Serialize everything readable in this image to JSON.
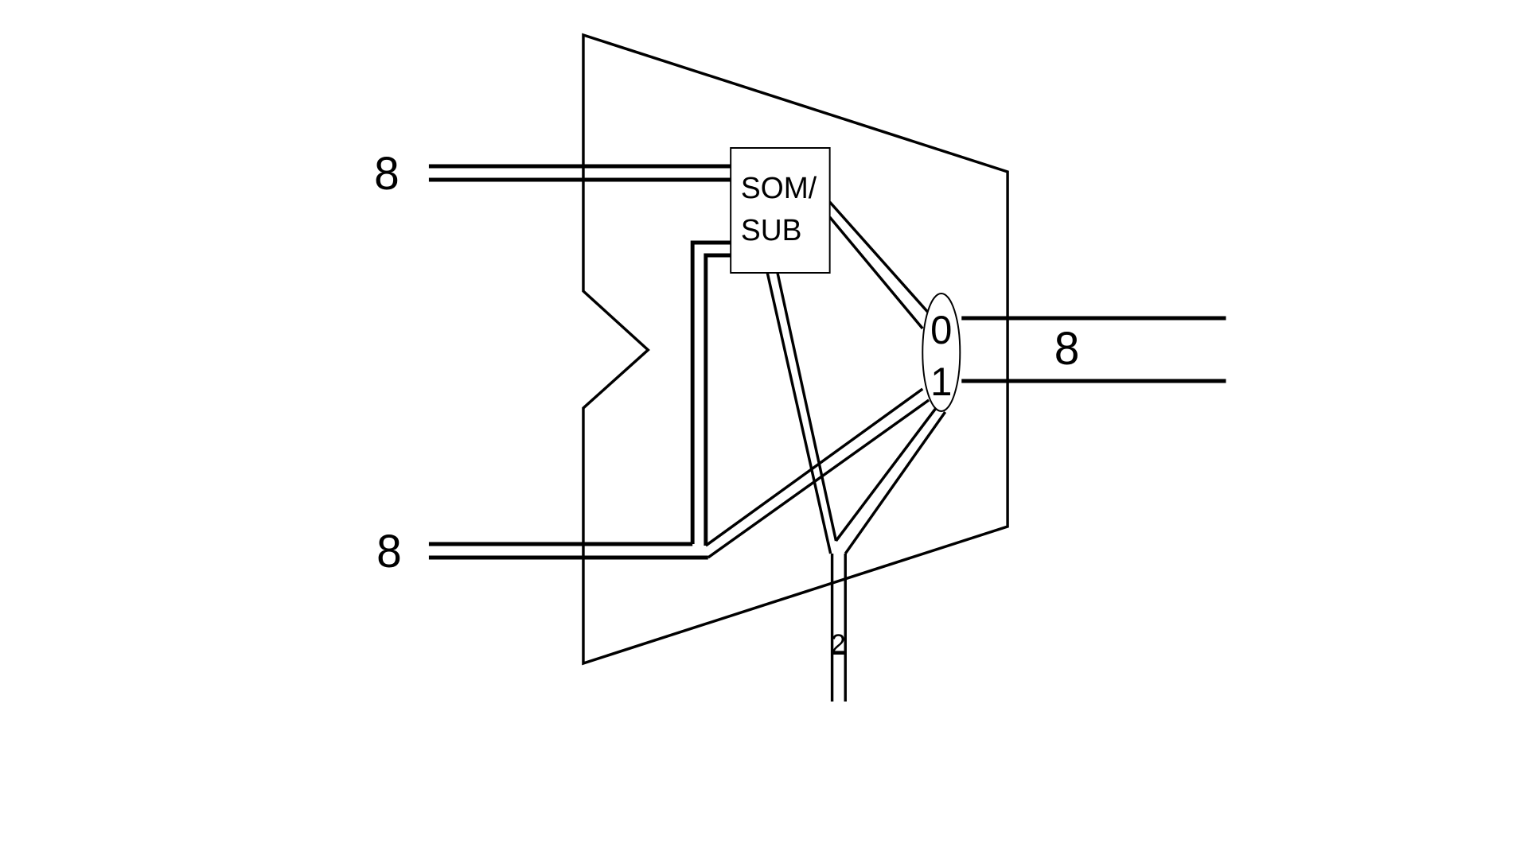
{
  "diagram": {
    "input_a_width": "8",
    "input_b_width": "8",
    "output_width": "8",
    "select_width": "2",
    "adder": {
      "line1": "SOM/",
      "line2": "SUB"
    },
    "mux": {
      "input0": "0",
      "input1": "1"
    },
    "colors": {
      "stroke": "#000000",
      "background": "#ffffff"
    }
  }
}
